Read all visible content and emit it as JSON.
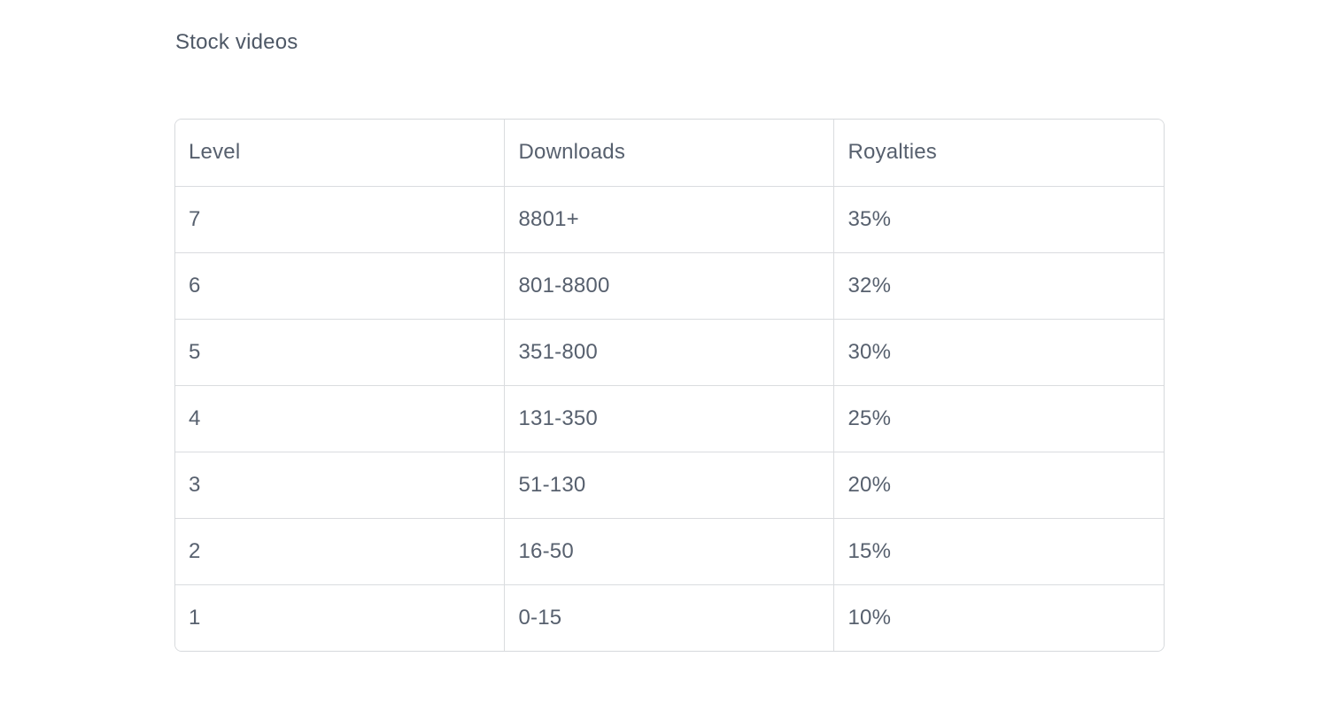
{
  "page": {
    "title": "Stock videos"
  },
  "colors": {
    "background": "#ffffff",
    "text": "#57606e",
    "title_text": "#4e5866",
    "border": "#dadcdf"
  },
  "table": {
    "columns": [
      "Level",
      "Downloads",
      "Royalties"
    ],
    "rows": [
      {
        "level": "7",
        "downloads": "8801+",
        "royalties": "35%"
      },
      {
        "level": "6",
        "downloads": "801-8800",
        "royalties": "32%"
      },
      {
        "level": "5",
        "downloads": "351-800",
        "royalties": "30%"
      },
      {
        "level": "4",
        "downloads": "131-350",
        "royalties": "25%"
      },
      {
        "level": "3",
        "downloads": "51-130",
        "royalties": "20%"
      },
      {
        "level": "2",
        "downloads": "16-50",
        "royalties": "15%"
      },
      {
        "level": "1",
        "downloads": "0-15",
        "royalties": "10%"
      }
    ]
  }
}
